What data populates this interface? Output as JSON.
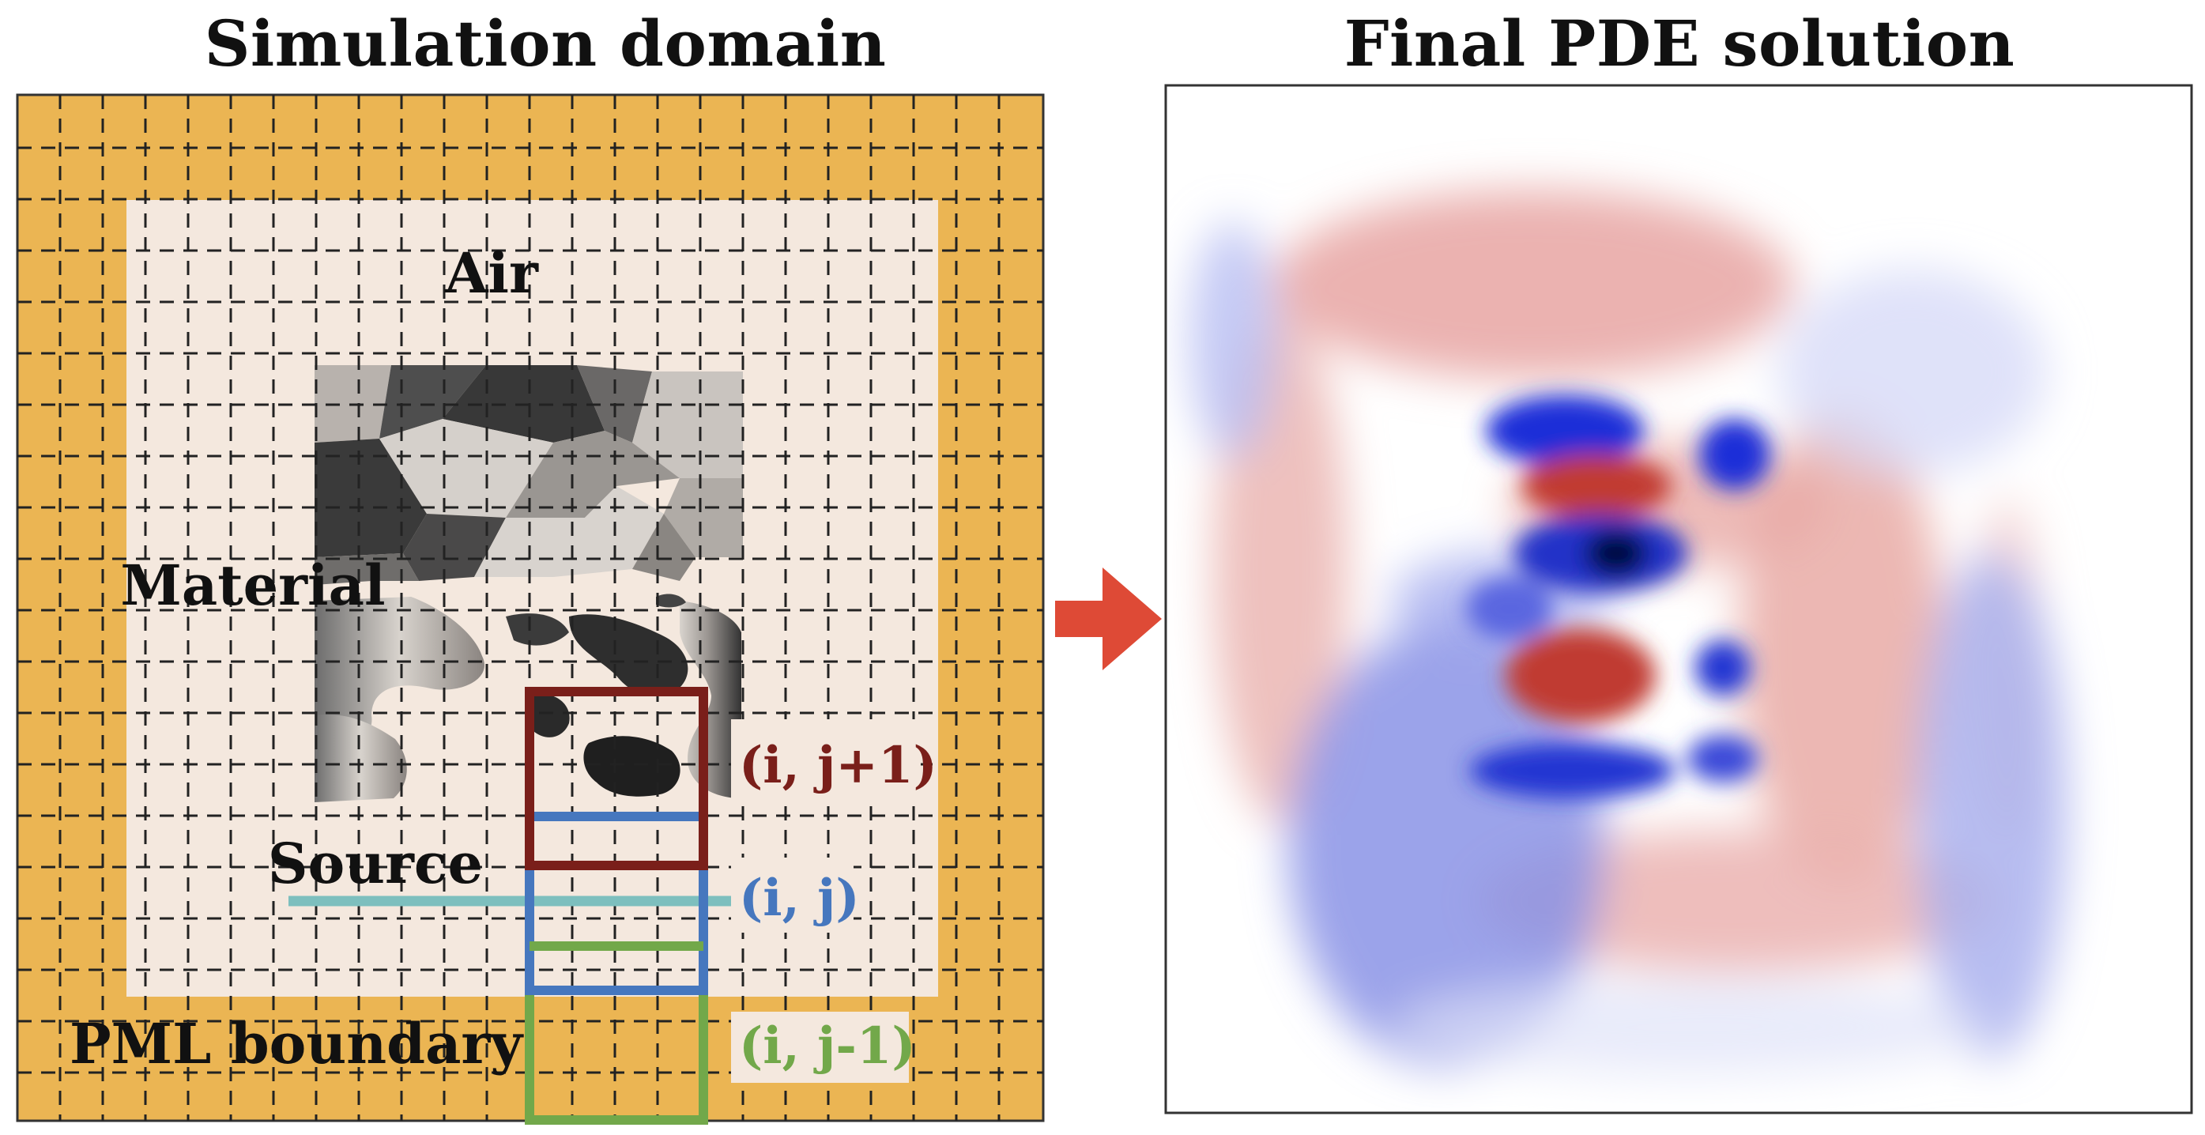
{
  "titles": {
    "left": "Simulation domain",
    "right": "Final PDE solution"
  },
  "labels": {
    "air": "Air",
    "material": "Material",
    "source": "Source",
    "pml": "PML boundary",
    "cell_top": "(i, j+1)",
    "cell_mid": "(i, j)",
    "cell_bot": "(i, j-1)"
  },
  "colors": {
    "pml": "#EBB553",
    "air": "#F4E8DE",
    "cell_top": "#7A1F1A",
    "cell_mid": "#4677BE",
    "cell_bot": "#72A84A",
    "source_line": "#7DBFBE",
    "arrow": "#DE4A36",
    "field_positive": "#B22A22",
    "field_negative": "#0A1FC8"
  },
  "icons": {
    "arrow": "right-arrow-icon"
  }
}
